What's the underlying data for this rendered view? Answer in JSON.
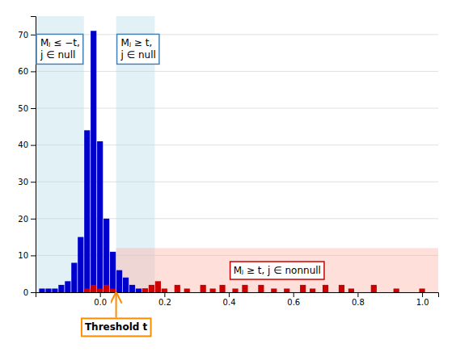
{
  "chart_data": {
    "type": "bar",
    "xlim": [
      -0.2,
      1.05
    ],
    "ylim": [
      0,
      75
    ],
    "xticks": [
      {
        "value": 0.0,
        "label": "0.0"
      },
      {
        "value": 0.2,
        "label": "0.2"
      },
      {
        "value": 0.4,
        "label": "0.4"
      },
      {
        "value": 0.6,
        "label": "0.6"
      },
      {
        "value": 0.8,
        "label": "0.8"
      },
      {
        "value": 1.0,
        "label": "1.0"
      }
    ],
    "yticks": [
      0,
      10,
      20,
      30,
      40,
      50,
      60,
      70
    ],
    "grid": true,
    "series": [
      {
        "color": "#0000cc",
        "x": [
          -0.18,
          -0.16,
          -0.14,
          -0.12,
          -0.1,
          -0.08,
          -0.06,
          -0.04,
          -0.02,
          0.0,
          0.02,
          0.04,
          0.06,
          0.08,
          0.1,
          0.12,
          0.14
        ],
        "values": [
          1,
          1,
          1,
          2,
          3,
          8,
          15,
          44,
          71,
          41,
          20,
          11,
          6,
          4,
          2,
          1,
          1
        ]
      },
      {
        "color": "#cc0000",
        "x": [
          -0.04,
          -0.02,
          0.0,
          0.02,
          0.04
        ],
        "values": [
          1,
          2,
          1,
          2,
          1
        ]
      },
      {
        "color": "#cc0000",
        "x": [
          0.14,
          0.16,
          0.18,
          0.2,
          0.24,
          0.27,
          0.32,
          0.35,
          0.38,
          0.42,
          0.45,
          0.5,
          0.54,
          0.58,
          0.63,
          0.66,
          0.7,
          0.75,
          0.78,
          0.85,
          0.92,
          1.0
        ],
        "values": [
          1,
          2,
          3,
          1,
          2,
          1,
          2,
          1,
          2,
          1,
          2,
          2,
          1,
          1,
          2,
          1,
          2,
          2,
          1,
          2,
          1,
          1
        ]
      }
    ],
    "regions": [
      {
        "x": [
          -0.2,
          -0.05
        ],
        "color": "#add8e6"
      },
      {
        "x": [
          0.05,
          0.17
        ],
        "color": "#add8e6"
      },
      {
        "x": [
          0.05,
          1.05
        ],
        "y": [
          0,
          12
        ],
        "color": "#ffb0a0"
      }
    ],
    "annotations": [
      {
        "lines": [
          "Mⱼ ≤ −t,",
          "j ∈ null"
        ],
        "color": "steelblue"
      },
      {
        "lines": [
          "Mⱼ ≥ t,",
          "j ∈ null"
        ],
        "color": "steelblue"
      },
      {
        "lines": [
          "Mⱼ ≥ t, j ∈ nonnull"
        ],
        "color": "#cc0000"
      }
    ],
    "threshold": 0.05,
    "threshold_label": "Threshold t",
    "threshold_color": "darkorange"
  }
}
